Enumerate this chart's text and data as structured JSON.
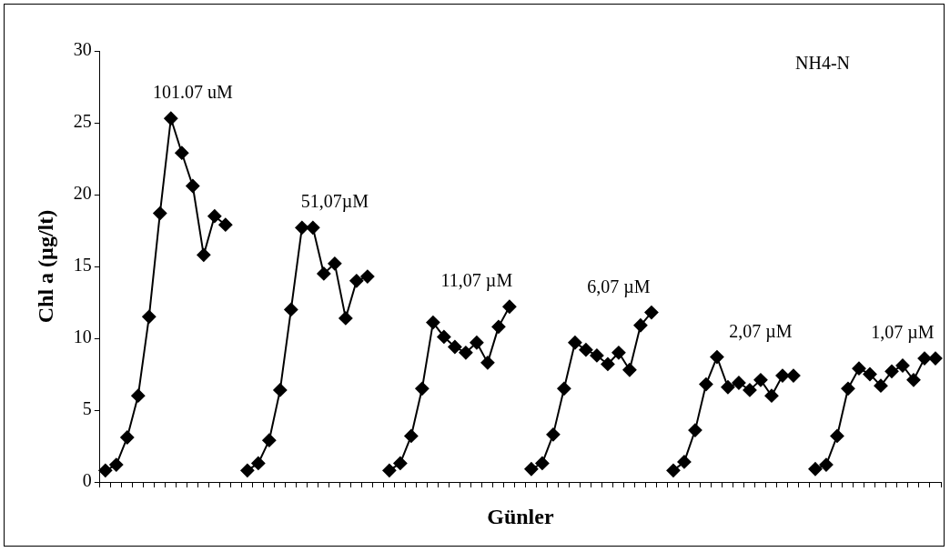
{
  "chart_data": {
    "type": "line",
    "title": "NH4-N",
    "xlabel": "Günler",
    "ylabel": "Chl a (µg/lt)",
    "categories": [
      null,
      null,
      null,
      null,
      null,
      null,
      null,
      null,
      null,
      null,
      null,
      null,
      null,
      null,
      null,
      null,
      null,
      null,
      null,
      null,
      null,
      null,
      null,
      null,
      null,
      null,
      null,
      null,
      null,
      null,
      null,
      null,
      null,
      null,
      null,
      null,
      null,
      null,
      null,
      null,
      null,
      null,
      null,
      null,
      null,
      null,
      null,
      null,
      null,
      null,
      null,
      null,
      null,
      null,
      null,
      null,
      null,
      null,
      null,
      null,
      null,
      null,
      null,
      null,
      null,
      null,
      null,
      null,
      null,
      null,
      null,
      null,
      null,
      null,
      null,
      null,
      null
    ],
    "series": [
      {
        "color": "#000000",
        "values": [
          0.8,
          1.2,
          3.1,
          6.0,
          11.5,
          18.7,
          25.3,
          22.9,
          20.6,
          15.8,
          18.5,
          17.9,
          null,
          0.8,
          1.3,
          2.9,
          6.4,
          12.0,
          17.7,
          17.7,
          14.5,
          15.2,
          11.4,
          14.0,
          14.3,
          null,
          0.8,
          1.3,
          3.2,
          6.5,
          11.1,
          10.1,
          9.4,
          9.0,
          9.7,
          8.3,
          10.8,
          12.2,
          null,
          0.9,
          1.3,
          3.3,
          6.5,
          9.7,
          9.2,
          8.8,
          8.2,
          9.0,
          7.8,
          10.9,
          11.8,
          null,
          0.8,
          1.4,
          3.6,
          6.8,
          8.7,
          6.6,
          6.9,
          6.4,
          7.1,
          6.0,
          7.4,
          7.4,
          null,
          0.9,
          1.2,
          3.2,
          6.5,
          7.9,
          7.5,
          6.7,
          7.7,
          8.1,
          7.1,
          8.6,
          8.6
        ]
      }
    ],
    "annotations": [
      "101.07 uM",
      "51,07µM",
      "11,07 µM",
      "6,07 µM",
      "2,07 µM",
      "1,07 µM"
    ],
    "ylim": [
      0,
      30
    ],
    "yticks": [
      0,
      5,
      10,
      15,
      20,
      25,
      30
    ],
    "grid": false,
    "legend": false,
    "marker": "diamond",
    "line_style": "solid"
  }
}
